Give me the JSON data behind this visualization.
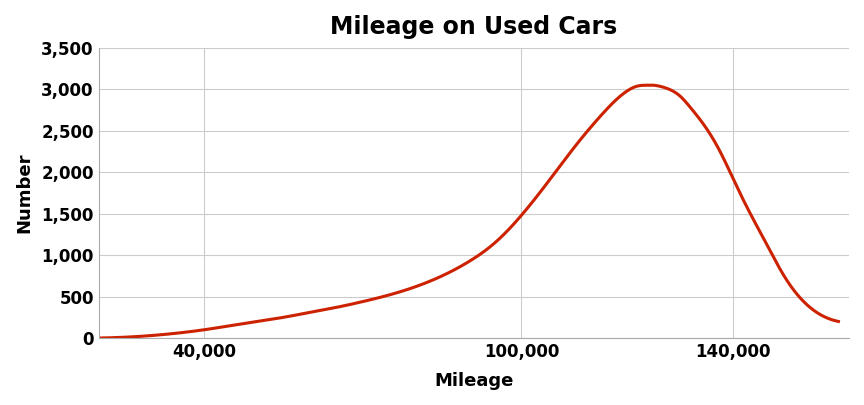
{
  "title": "Mileage on Used Cars",
  "xlabel": "Mileage",
  "ylabel": "Number",
  "xlim": [
    20000,
    162000
  ],
  "ylim": [
    0,
    3500
  ],
  "xticks": [
    40000,
    100000,
    140000
  ],
  "xtick_labels": [
    "40,000",
    "100,000",
    "140,000"
  ],
  "yticks": [
    0,
    500,
    1000,
    1500,
    2000,
    2500,
    3000,
    3500
  ],
  "ytick_labels": [
    "0",
    "500",
    "1,000",
    "1,500",
    "2,000",
    "2,500",
    "3,000",
    "3,500"
  ],
  "line_color": "#cc2200",
  "line_width": 2.2,
  "background_color": "#ffffff",
  "grid_color": "#cccccc",
  "title_fontsize": 17,
  "label_fontsize": 13,
  "tick_fontsize": 12,
  "peak_y": 3050,
  "curve_x": [
    20000,
    25000,
    30000,
    35000,
    40000,
    45000,
    50000,
    55000,
    60000,
    65000,
    70000,
    75000,
    80000,
    85000,
    90000,
    95000,
    100000,
    105000,
    110000,
    115000,
    120000,
    122000,
    124000,
    125000,
    126000,
    128000,
    130000,
    132000,
    135000,
    138000,
    140000,
    143000,
    146000,
    150000,
    155000,
    160000
  ],
  "curve_y": [
    0,
    10,
    30,
    60,
    100,
    150,
    200,
    250,
    310,
    370,
    440,
    520,
    620,
    750,
    920,
    1150,
    1480,
    1880,
    2300,
    2680,
    2980,
    3040,
    3050,
    3050,
    3040,
    3000,
    2920,
    2780,
    2530,
    2200,
    1930,
    1540,
    1180,
    720,
    350,
    200
  ]
}
